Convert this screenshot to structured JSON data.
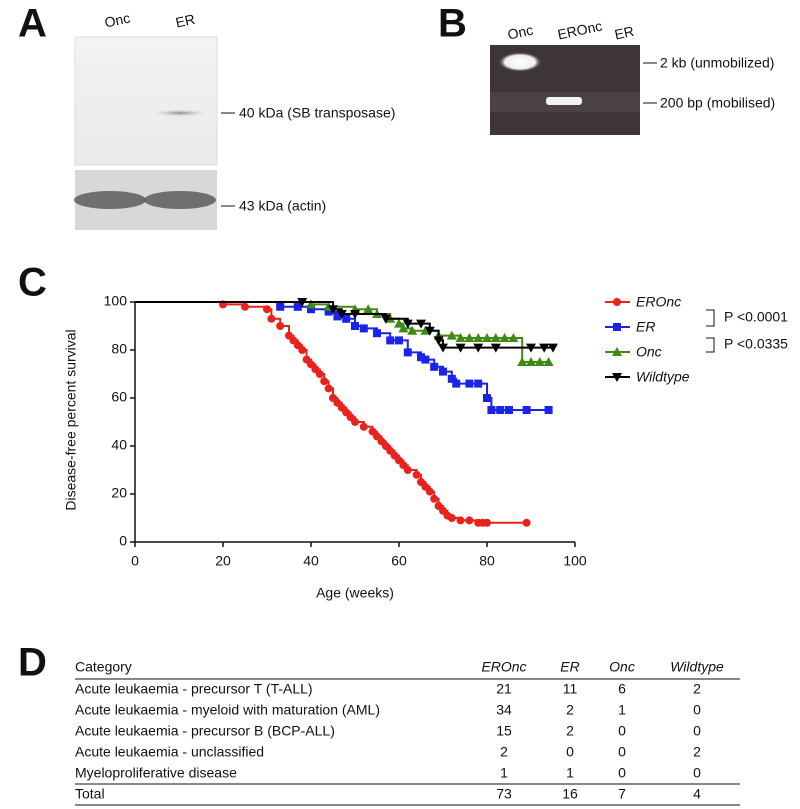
{
  "panel_a": {
    "letter": "A",
    "lanes": [
      "Onc",
      "ER"
    ],
    "band_labels": [
      "40 kDa (SB transposase)",
      "43 kDa (actin)"
    ]
  },
  "panel_b": {
    "letter": "B",
    "lanes": [
      "Onc",
      "EROnc",
      "ER"
    ],
    "band_labels": [
      "2 kb (unmobilized)",
      "200 bp (mobilised)"
    ]
  },
  "chart_data": {
    "type": "survival",
    "letter": "C",
    "x_label": "Age (weeks)",
    "y_label": "Disease-free percent survival",
    "xlim": [
      0,
      100
    ],
    "xticks": [
      0,
      20,
      40,
      60,
      80,
      100
    ],
    "ylim": [
      0,
      100
    ],
    "yticks": [
      0,
      20,
      40,
      60,
      80,
      100
    ],
    "annotations": [
      "P <0.0001",
      "P <0.0335"
    ],
    "series": [
      {
        "name": "EROnc",
        "color": "#e8231f",
        "marker": "circle",
        "x": [
          0,
          20,
          25,
          30,
          31,
          33,
          35,
          36,
          37,
          38,
          39,
          40,
          41,
          42,
          43,
          44,
          45,
          46,
          47,
          48,
          49,
          50,
          52,
          54,
          55,
          56,
          57,
          58,
          59,
          60,
          61,
          62,
          64,
          65,
          66,
          67,
          68,
          69,
          70,
          71,
          72,
          74,
          76,
          78,
          79,
          80,
          89
        ],
        "values": [
          100,
          99,
          98,
          97,
          93,
          90,
          86,
          84,
          82,
          80,
          76,
          74,
          72,
          70,
          67,
          64,
          60,
          58,
          56,
          54,
          52,
          50,
          48,
          46,
          44,
          42,
          40,
          38,
          36,
          34,
          32,
          30,
          28,
          25,
          23,
          21,
          18,
          15,
          13,
          11,
          10,
          9,
          9,
          8,
          8,
          8,
          8
        ]
      },
      {
        "name": "ER",
        "color": "#1a23e8",
        "marker": "square",
        "x": [
          0,
          33,
          37,
          40,
          44,
          46,
          48,
          50,
          52,
          55,
          58,
          60,
          62,
          65,
          66,
          68,
          70,
          72,
          73,
          76,
          78,
          80,
          81,
          83,
          85,
          89,
          94
        ],
        "values": [
          100,
          98,
          98,
          97,
          96,
          94,
          93,
          90,
          89,
          87,
          84,
          84,
          79,
          77,
          76,
          73,
          71,
          68,
          66,
          66,
          66,
          60,
          55,
          55,
          55,
          55,
          55
        ]
      },
      {
        "name": "Onc",
        "color": "#3f8a12",
        "marker": "triangle-up",
        "x": [
          0,
          40,
          44,
          50,
          53,
          55,
          58,
          60,
          61,
          63,
          66,
          69,
          72,
          74,
          76,
          78,
          80,
          82,
          84,
          86,
          88,
          90,
          92,
          94
        ],
        "values": [
          100,
          99,
          98,
          97,
          97,
          95,
          93,
          91,
          89,
          88,
          88,
          86,
          86,
          85,
          85,
          85,
          85,
          85,
          85,
          85,
          75,
          75,
          75,
          75
        ]
      },
      {
        "name": "Wildtype",
        "color": "#000000",
        "marker": "triangle-down",
        "x": [
          0,
          38,
          45,
          47,
          50,
          57,
          62,
          65,
          67,
          69,
          70,
          74,
          78,
          82,
          90,
          93,
          95
        ],
        "values": [
          100,
          100,
          97,
          95,
          95,
          93,
          91,
          91,
          88,
          84,
          81,
          81,
          81,
          81,
          81,
          81,
          81
        ]
      }
    ]
  },
  "table": {
    "letter": "D",
    "header": [
      "Category",
      "EROnc",
      "ER",
      "Onc",
      "Wildtype"
    ],
    "rows": [
      [
        "Acute leukaemia - precursor T (T-ALL)",
        21,
        11,
        6,
        2
      ],
      [
        "Acute leukaemia - myeloid with maturation (AML)",
        34,
        2,
        1,
        0
      ],
      [
        "Acute leukaemia - precursor B (BCP-ALL)",
        15,
        2,
        0,
        0
      ],
      [
        "Acute leukaemia - unclassified",
        2,
        0,
        0,
        2
      ],
      [
        "Myeloproliferative disease",
        1,
        1,
        0,
        0
      ]
    ],
    "total": [
      "Total",
      73,
      16,
      7,
      4
    ]
  }
}
